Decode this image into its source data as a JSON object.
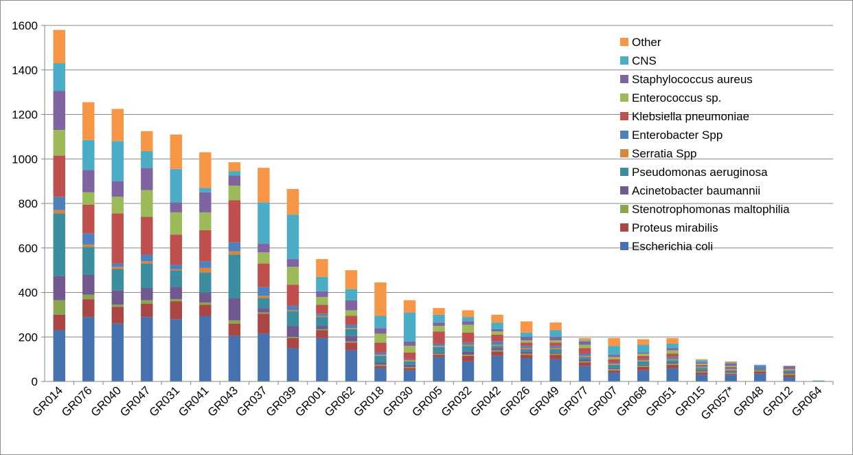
{
  "chart_data": {
    "type": "bar",
    "stacked": true,
    "title": "",
    "xlabel": "",
    "ylabel": "",
    "ylim": [
      0,
      1600
    ],
    "yticks": [
      0,
      200,
      400,
      600,
      800,
      1000,
      1200,
      1400,
      1600
    ],
    "grid": true,
    "legend_position": "right",
    "categories": [
      "GR014",
      "GR076",
      "GR040",
      "GR047",
      "GR031",
      "GR041",
      "GR043",
      "GR037",
      "GR039",
      "GR001",
      "GR062",
      "GR018",
      "GR030",
      "GR005",
      "GR032",
      "GR042",
      "GR026",
      "GR049",
      "GR077",
      "GR007",
      "GR068",
      "GR051",
      "GR015",
      "GR057*",
      "GR048",
      "GR012",
      "GR064"
    ],
    "series": [
      {
        "name": "Escherichia coli",
        "color": "#4672b0",
        "values": [
          230,
          290,
          260,
          290,
          280,
          295,
          205,
          215,
          150,
          195,
          140,
          60,
          50,
          110,
          90,
          115,
          105,
          100,
          70,
          40,
          50,
          60,
          30,
          30,
          35,
          20,
          2
        ]
      },
      {
        "name": "Proteus mirabilis",
        "color": "#aa4643",
        "values": [
          70,
          80,
          75,
          60,
          80,
          50,
          55,
          90,
          45,
          35,
          35,
          10,
          10,
          10,
          25,
          20,
          15,
          20,
          15,
          10,
          15,
          15,
          10,
          5,
          10,
          10,
          0
        ]
      },
      {
        "name": "Stenotrophomonas maltophilia",
        "color": "#89a54e",
        "values": [
          65,
          20,
          10,
          15,
          10,
          10,
          15,
          5,
          5,
          5,
          5,
          5,
          5,
          5,
          5,
          5,
          5,
          5,
          5,
          5,
          5,
          5,
          5,
          5,
          5,
          5,
          0
        ]
      },
      {
        "name": "Acinetobacter baumannii",
        "color": "#71588f",
        "values": [
          110,
          90,
          65,
          55,
          55,
          45,
          100,
          20,
          50,
          15,
          25,
          10,
          10,
          5,
          15,
          10,
          10,
          5,
          10,
          5,
          5,
          5,
          5,
          5,
          5,
          5,
          0
        ]
      },
      {
        "name": "Pseudomonas aeruginosa",
        "color": "#3a8e9f",
        "values": [
          280,
          125,
          95,
          110,
          75,
          90,
          195,
          45,
          65,
          40,
          30,
          30,
          15,
          25,
          25,
          10,
          10,
          15,
          10,
          15,
          15,
          10,
          10,
          5,
          5,
          10,
          2
        ]
      },
      {
        "name": "Serratia Spp",
        "color": "#db843d",
        "values": [
          15,
          10,
          10,
          10,
          5,
          20,
          15,
          10,
          5,
          5,
          5,
          5,
          5,
          5,
          5,
          5,
          5,
          5,
          5,
          5,
          5,
          5,
          5,
          5,
          0,
          5,
          0
        ]
      },
      {
        "name": "Enterobacter Spp",
        "color": "#4f81bd",
        "values": [
          60,
          50,
          15,
          30,
          20,
          30,
          40,
          40,
          20,
          10,
          15,
          10,
          5,
          10,
          10,
          15,
          10,
          10,
          10,
          5,
          5,
          10,
          5,
          5,
          5,
          5,
          0
        ]
      },
      {
        "name": "Klebsiella pneumoniae",
        "color": "#c0504d",
        "values": [
          185,
          130,
          225,
          170,
          135,
          140,
          190,
          105,
          95,
          40,
          40,
          45,
          30,
          55,
          45,
          30,
          15,
          15,
          25,
          15,
          15,
          15,
          5,
          5,
          0,
          5,
          0
        ]
      },
      {
        "name": "Enterococcus sp.",
        "color": "#9bbb59",
        "values": [
          115,
          55,
          75,
          120,
          100,
          80,
          65,
          50,
          80,
          35,
          25,
          40,
          30,
          25,
          35,
          15,
          10,
          10,
          15,
          10,
          10,
          15,
          5,
          5,
          0,
          0,
          0
        ]
      },
      {
        "name": "Staphylococcus aureus",
        "color": "#8064a2",
        "values": [
          175,
          100,
          70,
          100,
          45,
          90,
          45,
          40,
          35,
          25,
          45,
          25,
          20,
          15,
          15,
          10,
          15,
          15,
          15,
          10,
          5,
          10,
          5,
          10,
          5,
          5,
          0
        ]
      },
      {
        "name": "CNS",
        "color": "#4bacc6",
        "values": [
          125,
          135,
          180,
          75,
          150,
          20,
          20,
          185,
          200,
          65,
          50,
          55,
          130,
          35,
          20,
          30,
          20,
          30,
          5,
          40,
          35,
          20,
          10,
          5,
          5,
          0,
          0
        ]
      },
      {
        "name": "Other",
        "color": "#f79646",
        "values": [
          150,
          170,
          145,
          90,
          155,
          160,
          40,
          155,
          115,
          80,
          85,
          150,
          55,
          30,
          30,
          35,
          50,
          35,
          10,
          35,
          25,
          25,
          5,
          5,
          0,
          0,
          0
        ]
      }
    ]
  }
}
